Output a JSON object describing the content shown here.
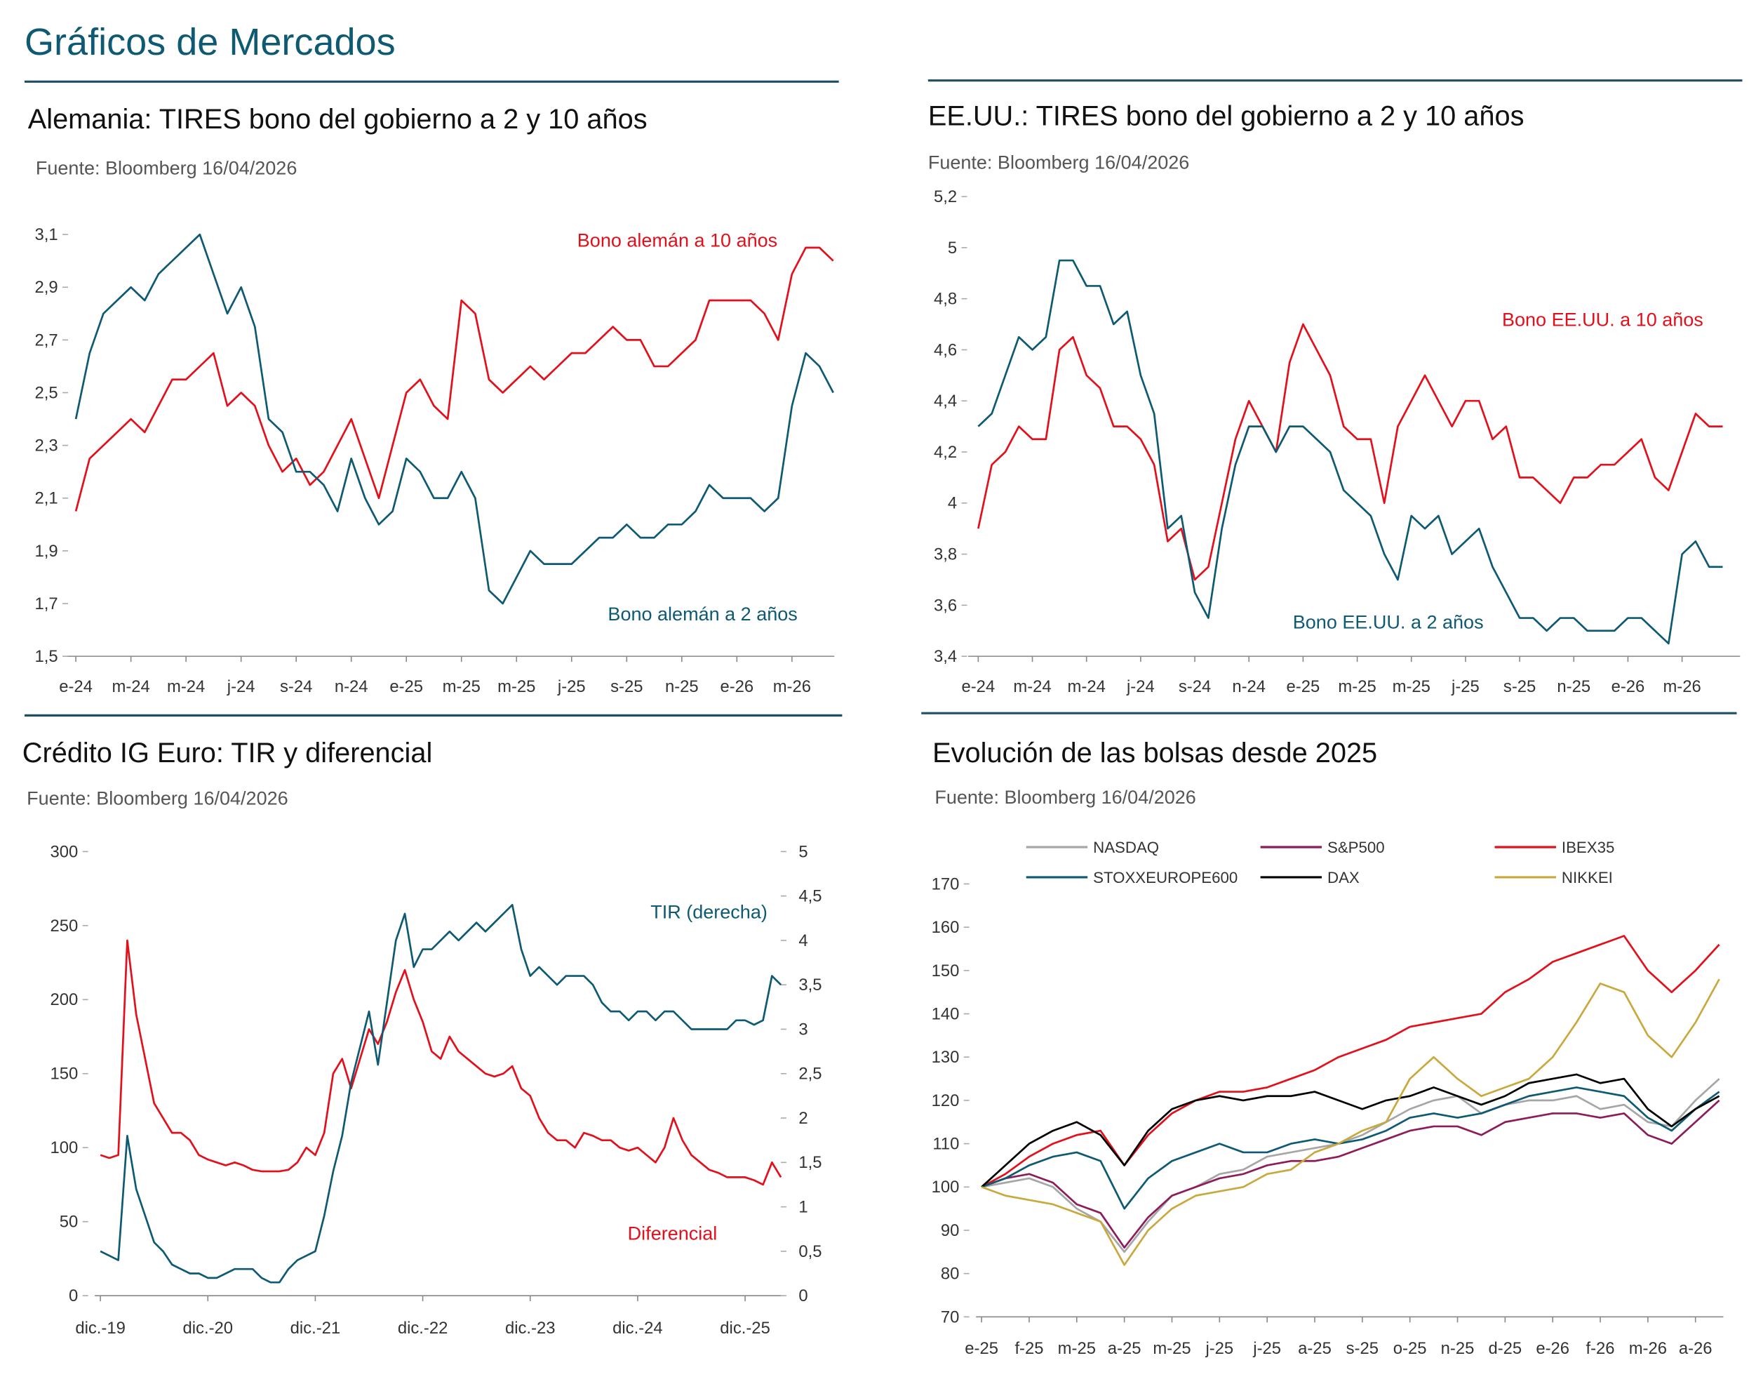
{
  "header": {
    "title": "Gráficos de Mercados"
  },
  "chart_data": [
    {
      "type": "line",
      "title": "Alemania: TIRES bono del gobierno a 2 y 10 años",
      "subtitle": "Fuente: Bloomberg 16/04/2026",
      "categories": [
        "e-24",
        null,
        null,
        null,
        "m-24",
        null,
        null,
        null,
        "m-24",
        null,
        null,
        null,
        "j-24",
        null,
        null,
        null,
        "s-24",
        null,
        null,
        null,
        "n-24",
        null,
        null,
        null,
        "e-25",
        null,
        null,
        null,
        "m-25",
        null,
        null,
        null,
        "m-25",
        null,
        null,
        null,
        "j-25",
        null,
        null,
        null,
        "s-25",
        null,
        null,
        null,
        "n-25",
        null,
        null,
        null,
        "e-26",
        null,
        null,
        null,
        "m-26",
        null,
        null,
        null
      ],
      "series": [
        {
          "name": "Bono alemán a 10 años",
          "color": "#e3101c",
          "values": [
            2.05,
            2.25,
            2.3,
            2.35,
            2.4,
            2.35,
            2.45,
            2.55,
            2.55,
            2.6,
            2.65,
            2.45,
            2.5,
            2.45,
            2.3,
            2.2,
            2.25,
            2.15,
            2.2,
            2.3,
            2.4,
            2.25,
            2.1,
            2.3,
            2.5,
            2.55,
            2.45,
            2.4,
            2.85,
            2.8,
            2.55,
            2.5,
            2.55,
            2.6,
            2.55,
            2.6,
            2.65,
            2.65,
            2.7,
            2.75,
            2.7,
            2.7,
            2.6,
            2.6,
            2.65,
            2.7,
            2.85,
            2.85,
            2.85,
            2.85,
            2.8,
            2.7,
            2.95,
            3.05,
            3.05,
            3.0
          ]
        },
        {
          "name": "Bono alemán a 2 años",
          "color": "#0e5a73",
          "values": [
            2.4,
            2.65,
            2.8,
            2.85,
            2.9,
            2.85,
            2.95,
            3.0,
            3.05,
            3.1,
            2.95,
            2.8,
            2.9,
            2.75,
            2.4,
            2.35,
            2.2,
            2.2,
            2.15,
            2.05,
            2.25,
            2.1,
            2.0,
            2.05,
            2.25,
            2.2,
            2.1,
            2.1,
            2.2,
            2.1,
            1.75,
            1.7,
            1.8,
            1.9,
            1.85,
            1.85,
            1.85,
            1.9,
            1.95,
            1.95,
            2.0,
            1.95,
            1.95,
            2.0,
            2.0,
            2.05,
            2.15,
            2.1,
            2.1,
            2.1,
            2.05,
            2.1,
            2.45,
            2.65,
            2.6,
            2.5
          ]
        }
      ],
      "ylim": [
        1.5,
        3.1
      ],
      "yticks": [
        {
          "value": 1.5,
          "label": "1,5"
        },
        {
          "value": 1.7,
          "label": "1,7"
        },
        {
          "value": 1.9,
          "label": "1,9"
        },
        {
          "value": 2.1,
          "label": "2,1"
        },
        {
          "value": 2.3,
          "label": "2,3"
        },
        {
          "value": 2.5,
          "label": "2,5"
        },
        {
          "value": 2.7,
          "label": "2,7"
        },
        {
          "value": 2.9,
          "label": "2,9"
        },
        {
          "value": 3.1,
          "label": "3,1"
        }
      ]
    },
    {
      "type": "line",
      "title": "EE.UU.: TIRES bono del gobierno a 2 y 10 años",
      "subtitle": "Fuente: Bloomberg 16/04/2026",
      "categories": [
        "e-24",
        null,
        null,
        null,
        "m-24",
        null,
        null,
        null,
        "m-24",
        null,
        null,
        null,
        "j-24",
        null,
        null,
        null,
        "s-24",
        null,
        null,
        null,
        "n-24",
        null,
        null,
        null,
        "e-25",
        null,
        null,
        null,
        "m-25",
        null,
        null,
        null,
        "m-25",
        null,
        null,
        null,
        "j-25",
        null,
        null,
        null,
        "s-25",
        null,
        null,
        null,
        "n-25",
        null,
        null,
        null,
        "e-26",
        null,
        null,
        null,
        "m-26",
        null,
        null,
        null
      ],
      "series": [
        {
          "name": "Bono EE.UU. a 10 años",
          "color": "#e3101c",
          "values": [
            3.9,
            4.15,
            4.2,
            4.3,
            4.25,
            4.25,
            4.6,
            4.65,
            4.5,
            4.45,
            4.3,
            4.3,
            4.25,
            4.15,
            3.85,
            3.9,
            3.7,
            3.75,
            4.0,
            4.25,
            4.4,
            4.3,
            4.2,
            4.55,
            4.7,
            4.6,
            4.5,
            4.3,
            4.25,
            4.25,
            4.0,
            4.3,
            4.4,
            4.5,
            4.4,
            4.3,
            4.4,
            4.4,
            4.25,
            4.3,
            4.1,
            4.1,
            4.05,
            4.0,
            4.1,
            4.1,
            4.15,
            4.15,
            4.2,
            4.25,
            4.1,
            4.05,
            4.2,
            4.35,
            4.3,
            4.3
          ]
        },
        {
          "name": "Bono EE.UU. a 2 años",
          "color": "#0e5a73",
          "values": [
            4.3,
            4.35,
            4.5,
            4.65,
            4.6,
            4.65,
            4.95,
            4.95,
            4.85,
            4.85,
            4.7,
            4.75,
            4.5,
            4.35,
            3.9,
            3.95,
            3.65,
            3.55,
            3.9,
            4.15,
            4.3,
            4.3,
            4.2,
            4.3,
            4.3,
            4.25,
            4.2,
            4.05,
            4.0,
            3.95,
            3.8,
            3.7,
            3.95,
            3.9,
            3.95,
            3.8,
            3.85,
            3.9,
            3.75,
            3.65,
            3.55,
            3.55,
            3.5,
            3.55,
            3.55,
            3.5,
            3.5,
            3.5,
            3.55,
            3.55,
            3.5,
            3.45,
            3.8,
            3.85,
            3.75,
            3.75
          ]
        }
      ],
      "ylim": [
        3.4,
        5.2
      ],
      "yticks": [
        {
          "value": 3.4,
          "label": "3,4"
        },
        {
          "value": 3.6,
          "label": "3,6"
        },
        {
          "value": 3.8,
          "label": "3,8"
        },
        4,
        {
          "value": 4.2,
          "label": "4,2"
        },
        {
          "value": 4.4,
          "label": "4,4"
        },
        {
          "value": 4.6,
          "label": "4,6"
        },
        {
          "value": 4.8,
          "label": "4,8"
        },
        5,
        {
          "value": 5.2,
          "label": "5,2"
        }
      ]
    },
    {
      "type": "line",
      "title": "Crédito IG Euro: TIR y diferencial",
      "subtitle": "Fuente: Bloomberg 16/04/2026",
      "categories": [
        "dic.-19",
        null,
        null,
        null,
        null,
        null,
        null,
        null,
        null,
        null,
        null,
        null,
        "dic.-20",
        null,
        null,
        null,
        null,
        null,
        null,
        null,
        null,
        null,
        null,
        null,
        "dic.-21",
        null,
        null,
        null,
        null,
        null,
        null,
        null,
        null,
        null,
        null,
        null,
        "dic.-22",
        null,
        null,
        null,
        null,
        null,
        null,
        null,
        null,
        null,
        null,
        null,
        "dic.-23",
        null,
        null,
        null,
        null,
        null,
        null,
        null,
        null,
        null,
        null,
        null,
        "dic.-24",
        null,
        null,
        null,
        null,
        null,
        null,
        null,
        null,
        null,
        null,
        null,
        "dic.-25",
        null,
        null,
        null,
        null
      ],
      "series": [
        {
          "name": "Diferencial",
          "color": "#e3101c",
          "values": [
            95,
            93,
            95,
            240,
            190,
            160,
            130,
            120,
            110,
            110,
            105,
            95,
            92,
            90,
            88,
            90,
            88,
            85,
            84,
            84,
            84,
            85,
            90,
            100,
            95,
            110,
            150,
            160,
            140,
            160,
            180,
            170,
            185,
            205,
            220,
            200,
            185,
            165,
            160,
            175,
            165,
            160,
            155,
            150,
            148,
            150,
            155,
            140,
            135,
            120,
            110,
            105,
            105,
            100,
            110,
            108,
            105,
            105,
            100,
            98,
            100,
            95,
            90,
            100,
            120,
            105,
            95,
            90,
            85,
            83,
            80,
            80,
            80,
            78,
            75,
            90,
            80
          ]
        },
        {
          "name": "TIR (derecha)",
          "color": "#0e5a73",
          "axis": "y2",
          "values": [
            0.5,
            0.45,
            0.4,
            1.8,
            1.2,
            0.9,
            0.6,
            0.5,
            0.35,
            0.3,
            0.25,
            0.25,
            0.2,
            0.2,
            0.25,
            0.3,
            0.3,
            0.3,
            0.2,
            0.15,
            0.15,
            0.3,
            0.4,
            0.45,
            0.5,
            0.9,
            1.4,
            1.8,
            2.4,
            2.8,
            3.2,
            2.6,
            3.3,
            4.0,
            4.3,
            3.7,
            3.9,
            3.9,
            4.0,
            4.1,
            4.0,
            4.1,
            4.2,
            4.1,
            4.2,
            4.3,
            4.4,
            3.9,
            3.6,
            3.7,
            3.6,
            3.5,
            3.6,
            3.6,
            3.6,
            3.5,
            3.3,
            3.2,
            3.2,
            3.1,
            3.2,
            3.2,
            3.1,
            3.2,
            3.2,
            3.1,
            3.0,
            3.0,
            3.0,
            3.0,
            3.0,
            3.1,
            3.1,
            3.05,
            3.1,
            3.6,
            3.5
          ]
        }
      ],
      "ylim": [
        0,
        300
      ],
      "yticks": [
        0,
        50,
        100,
        150,
        200,
        250,
        300
      ],
      "y2lim": [
        0,
        5
      ],
      "y2ticks": [
        0,
        {
          "value": 0.5,
          "label": "0,5"
        },
        1,
        {
          "value": 1.5,
          "label": "1,5"
        },
        2,
        {
          "value": 2.5,
          "label": "2,5"
        },
        3,
        {
          "value": 3.5,
          "label": "3,5"
        },
        4,
        {
          "value": 4.5,
          "label": "4,5"
        },
        5
      ]
    },
    {
      "type": "line",
      "title": "Evolución de las bolsas desde 2025",
      "subtitle": "Fuente: Bloomberg 16/04/2026",
      "legend": "top",
      "categories": [
        "e-25",
        null,
        "f-25",
        null,
        "m-25",
        null,
        "a-25",
        null,
        "m-25",
        null,
        "j-25",
        null,
        "j-25",
        null,
        "a-25",
        null,
        "s-25",
        null,
        "o-25",
        null,
        "n-25",
        null,
        "d-25",
        null,
        "e-26",
        null,
        "f-26",
        null,
        "m-26",
        null,
        "a-26",
        null
      ],
      "series": [
        {
          "name": "NASDAQ",
          "color": "#a6a6a6",
          "values": [
            100,
            101,
            102,
            100,
            95,
            92,
            85,
            92,
            98,
            100,
            103,
            104,
            107,
            108,
            109,
            110,
            112,
            115,
            118,
            120,
            121,
            117,
            119,
            120,
            120,
            121,
            118,
            119,
            115,
            114,
            120,
            125
          ]
        },
        {
          "name": "S&P500",
          "color": "#8c1c5a",
          "values": [
            100,
            102,
            103,
            101,
            96,
            94,
            86,
            93,
            98,
            100,
            102,
            103,
            105,
            106,
            106,
            107,
            109,
            111,
            113,
            114,
            114,
            112,
            115,
            116,
            117,
            117,
            116,
            117,
            112,
            110,
            115,
            120
          ]
        },
        {
          "name": "IBEX35",
          "color": "#e3101c",
          "values": [
            100,
            103,
            107,
            110,
            112,
            113,
            105,
            112,
            117,
            120,
            122,
            122,
            123,
            125,
            127,
            130,
            132,
            134,
            137,
            138,
            139,
            140,
            145,
            148,
            152,
            154,
            156,
            158,
            150,
            145,
            150,
            156
          ]
        },
        {
          "name": "STOXXEUROPE600",
          "color": "#0e5a73",
          "values": [
            100,
            102,
            105,
            107,
            108,
            106,
            95,
            102,
            106,
            108,
            110,
            108,
            108,
            110,
            111,
            110,
            111,
            113,
            116,
            117,
            116,
            117,
            119,
            121,
            122,
            123,
            122,
            121,
            116,
            113,
            118,
            122
          ]
        },
        {
          "name": "DAX",
          "color": "#000000",
          "values": [
            100,
            105,
            110,
            113,
            115,
            112,
            105,
            113,
            118,
            120,
            121,
            120,
            121,
            121,
            122,
            120,
            118,
            120,
            121,
            123,
            121,
            119,
            121,
            124,
            125,
            126,
            124,
            125,
            118,
            114,
            118,
            121
          ]
        },
        {
          "name": "NIKKEI",
          "color": "#c9a93e",
          "values": [
            100,
            98,
            97,
            96,
            94,
            92,
            82,
            90,
            95,
            98,
            99,
            100,
            103,
            104,
            108,
            110,
            113,
            115,
            125,
            130,
            125,
            121,
            123,
            125,
            130,
            138,
            147,
            145,
            135,
            130,
            138,
            148
          ]
        }
      ],
      "ylim": [
        70,
        170
      ],
      "yticks": [
        70,
        80,
        90,
        100,
        110,
        120,
        130,
        140,
        150,
        160,
        170
      ]
    }
  ]
}
